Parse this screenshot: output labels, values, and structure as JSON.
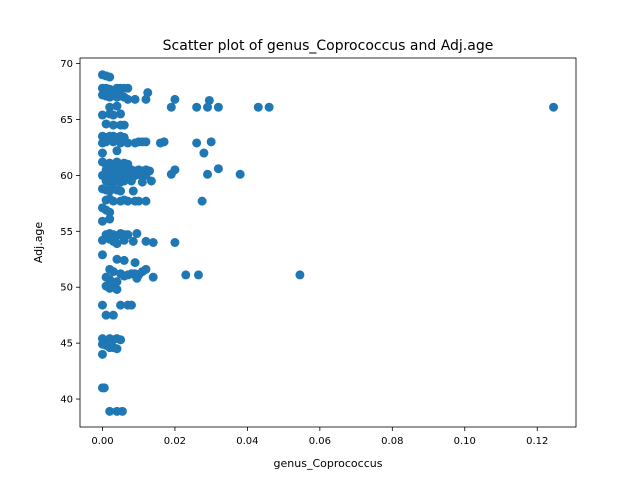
{
  "chart_data": {
    "type": "scatter",
    "title": "Scatter plot of genus_Coprococcus and Adj.age",
    "xlabel": "genus_Coprococcus",
    "ylabel": "Adj.age",
    "xlim": [
      -0.0062,
      0.1307
    ],
    "ylim": [
      37.5,
      70.5
    ],
    "xticks": [
      0.0,
      0.02,
      0.04,
      0.06,
      0.08,
      0.1,
      0.12
    ],
    "xtick_labels": [
      "0.00",
      "0.02",
      "0.04",
      "0.06",
      "0.08",
      "0.10",
      "0.12"
    ],
    "yticks": [
      40,
      45,
      50,
      55,
      60,
      65,
      70
    ],
    "ytick_labels": [
      "40",
      "45",
      "50",
      "55",
      "60",
      "65",
      "70"
    ],
    "grid": false,
    "marker_color": "#1f77b4",
    "points": [
      [
        0.0,
        69.0
      ],
      [
        0.001,
        68.9
      ],
      [
        0.002,
        68.8
      ],
      [
        0.0,
        67.8
      ],
      [
        0.001,
        67.8
      ],
      [
        0.002,
        67.7
      ],
      [
        0.003,
        67.6
      ],
      [
        0.004,
        67.8
      ],
      [
        0.005,
        67.8
      ],
      [
        0.006,
        67.8
      ],
      [
        0.007,
        67.8
      ],
      [
        0.0,
        67.2
      ],
      [
        0.001,
        67.1
      ],
      [
        0.002,
        67.0
      ],
      [
        0.003,
        67.2
      ],
      [
        0.004,
        67.0
      ],
      [
        0.005,
        67.1
      ],
      [
        0.006,
        67.0
      ],
      [
        0.007,
        66.8
      ],
      [
        0.009,
        66.8
      ],
      [
        0.012,
        66.8
      ],
      [
        0.0125,
        67.4
      ],
      [
        0.02,
        66.8
      ],
      [
        0.002,
        66.1
      ],
      [
        0.004,
        66.2
      ],
      [
        0.019,
        66.1
      ],
      [
        0.026,
        66.1
      ],
      [
        0.029,
        66.1
      ],
      [
        0.0295,
        66.7
      ],
      [
        0.032,
        66.1
      ],
      [
        0.043,
        66.1
      ],
      [
        0.046,
        66.1
      ],
      [
        0.1245,
        66.1
      ],
      [
        0.0,
        65.4
      ],
      [
        0.002,
        65.5
      ],
      [
        0.003,
        65.4
      ],
      [
        0.005,
        65.5
      ],
      [
        0.001,
        64.6
      ],
      [
        0.003,
        64.5
      ],
      [
        0.005,
        64.5
      ],
      [
        0.006,
        64.5
      ],
      [
        0.0,
        63.5
      ],
      [
        0.001,
        63.4
      ],
      [
        0.002,
        63.5
      ],
      [
        0.003,
        63.5
      ],
      [
        0.004,
        63.4
      ],
      [
        0.005,
        63.5
      ],
      [
        0.006,
        63.4
      ],
      [
        0.0,
        62.9
      ],
      [
        0.001,
        63.0
      ],
      [
        0.003,
        63.0
      ],
      [
        0.005,
        62.9
      ],
      [
        0.007,
        62.9
      ],
      [
        0.009,
        62.9
      ],
      [
        0.01,
        63.0
      ],
      [
        0.011,
        63.0
      ],
      [
        0.012,
        63.0
      ],
      [
        0.016,
        62.9
      ],
      [
        0.017,
        63.0
      ],
      [
        0.026,
        62.9
      ],
      [
        0.03,
        63.0
      ],
      [
        0.0,
        62.0
      ],
      [
        0.004,
        62.2
      ],
      [
        0.028,
        62.0
      ],
      [
        0.0,
        61.2
      ],
      [
        0.001,
        61.0
      ],
      [
        0.002,
        61.1
      ],
      [
        0.003,
        61.0
      ],
      [
        0.004,
        61.2
      ],
      [
        0.005,
        61.0
      ],
      [
        0.006,
        61.1
      ],
      [
        0.007,
        61.0
      ],
      [
        0.001,
        60.5
      ],
      [
        0.002,
        60.6
      ],
      [
        0.003,
        60.4
      ],
      [
        0.004,
        60.5
      ],
      [
        0.005,
        60.6
      ],
      [
        0.006,
        60.4
      ],
      [
        0.007,
        60.5
      ],
      [
        0.008,
        60.5
      ],
      [
        0.009,
        60.4
      ],
      [
        0.01,
        60.5
      ],
      [
        0.011,
        60.4
      ],
      [
        0.012,
        60.5
      ],
      [
        0.013,
        60.4
      ],
      [
        0.02,
        60.5
      ],
      [
        0.032,
        60.6
      ],
      [
        0.0,
        60.0
      ],
      [
        0.001,
        60.1
      ],
      [
        0.002,
        59.9
      ],
      [
        0.003,
        60.0
      ],
      [
        0.004,
        60.1
      ],
      [
        0.005,
        59.9
      ],
      [
        0.006,
        60.0
      ],
      [
        0.007,
        60.1
      ],
      [
        0.008,
        59.9
      ],
      [
        0.009,
        60.0
      ],
      [
        0.01,
        60.1
      ],
      [
        0.011,
        59.9
      ],
      [
        0.012,
        60.0
      ],
      [
        0.019,
        60.1
      ],
      [
        0.029,
        60.1
      ],
      [
        0.038,
        60.1
      ],
      [
        0.001,
        59.5
      ],
      [
        0.002,
        59.4
      ],
      [
        0.003,
        59.5
      ],
      [
        0.004,
        59.5
      ],
      [
        0.005,
        59.4
      ],
      [
        0.006,
        59.5
      ],
      [
        0.008,
        59.5
      ],
      [
        0.011,
        59.4
      ],
      [
        0.0135,
        59.5
      ],
      [
        0.0,
        58.8
      ],
      [
        0.001,
        58.7
      ],
      [
        0.002,
        58.6
      ],
      [
        0.003,
        58.8
      ],
      [
        0.004,
        58.7
      ],
      [
        0.005,
        58.6
      ],
      [
        0.0085,
        58.6
      ],
      [
        0.001,
        57.8
      ],
      [
        0.002,
        57.9
      ],
      [
        0.003,
        57.7
      ],
      [
        0.005,
        57.7
      ],
      [
        0.006,
        57.8
      ],
      [
        0.007,
        57.7
      ],
      [
        0.009,
        57.7
      ],
      [
        0.01,
        57.7
      ],
      [
        0.012,
        57.7
      ],
      [
        0.0275,
        57.7
      ],
      [
        0.0,
        57.1
      ],
      [
        0.001,
        56.9
      ],
      [
        0.002,
        56.7
      ],
      [
        0.0,
        55.9
      ],
      [
        0.002,
        56.1
      ],
      [
        0.001,
        54.7
      ],
      [
        0.002,
        54.8
      ],
      [
        0.003,
        54.7
      ],
      [
        0.004,
        54.6
      ],
      [
        0.005,
        54.8
      ],
      [
        0.006,
        54.7
      ],
      [
        0.007,
        54.7
      ],
      [
        0.0095,
        54.8
      ],
      [
        0.0,
        54.2
      ],
      [
        0.002,
        54.3
      ],
      [
        0.003,
        54.1
      ],
      [
        0.004,
        53.9
      ],
      [
        0.006,
        54.2
      ],
      [
        0.0085,
        54.1
      ],
      [
        0.012,
        54.1
      ],
      [
        0.014,
        54.0
      ],
      [
        0.02,
        54.0
      ],
      [
        0.0,
        52.9
      ],
      [
        0.004,
        52.5
      ],
      [
        0.006,
        52.4
      ],
      [
        0.009,
        52.2
      ],
      [
        0.002,
        51.6
      ],
      [
        0.003,
        51.4
      ],
      [
        0.005,
        51.2
      ],
      [
        0.006,
        51.0
      ],
      [
        0.007,
        51.1
      ],
      [
        0.008,
        51.2
      ],
      [
        0.009,
        51.2
      ],
      [
        0.01,
        51.1
      ],
      [
        0.011,
        51.4
      ],
      [
        0.012,
        51.6
      ],
      [
        0.014,
        50.9
      ],
      [
        0.023,
        51.1
      ],
      [
        0.0265,
        51.1
      ],
      [
        0.0545,
        51.1
      ],
      [
        0.001,
        50.9
      ],
      [
        0.002,
        50.7
      ],
      [
        0.004,
        50.5
      ],
      [
        0.0095,
        50.8
      ],
      [
        0.001,
        50.1
      ],
      [
        0.002,
        49.9
      ],
      [
        0.003,
        50.0
      ],
      [
        0.004,
        49.8
      ],
      [
        0.0,
        48.4
      ],
      [
        0.005,
        48.4
      ],
      [
        0.007,
        48.4
      ],
      [
        0.008,
        48.4
      ],
      [
        0.001,
        47.5
      ],
      [
        0.003,
        47.5
      ],
      [
        0.0,
        45.4
      ],
      [
        0.002,
        45.4
      ],
      [
        0.003,
        45.3
      ],
      [
        0.004,
        45.4
      ],
      [
        0.005,
        45.3
      ],
      [
        0.0,
        44.9
      ],
      [
        0.001,
        44.8
      ],
      [
        0.002,
        44.6
      ],
      [
        0.003,
        44.6
      ],
      [
        0.004,
        44.5
      ],
      [
        0.0,
        44.0
      ],
      [
        0.0,
        41.0
      ],
      [
        0.0005,
        41.0
      ],
      [
        0.002,
        38.9
      ],
      [
        0.004,
        38.9
      ],
      [
        0.0055,
        38.9
      ]
    ]
  }
}
